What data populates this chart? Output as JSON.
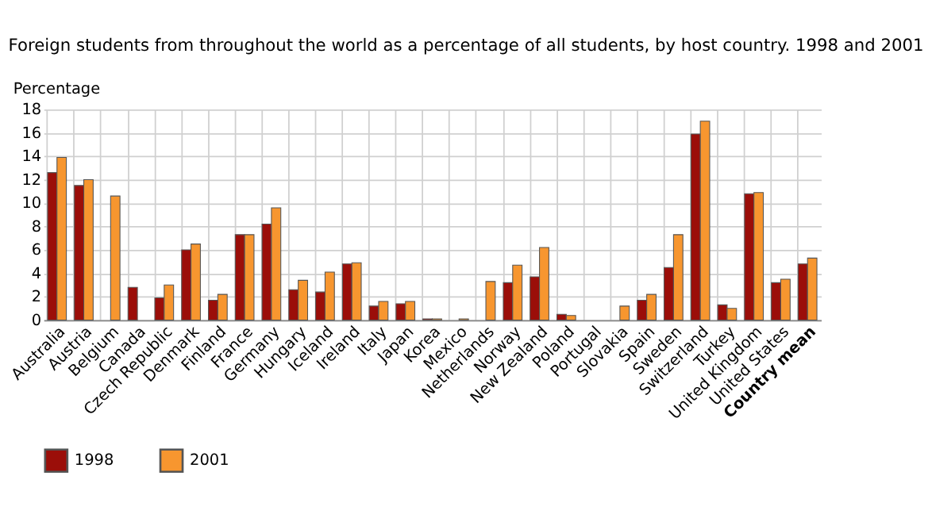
{
  "chart_data": {
    "type": "bar",
    "title": "Foreign students from throughout the world as a percentage of all students, by host country. 1998 and 2001",
    "ylabel": "Percentage",
    "categories": [
      "Australia",
      "Austria",
      "Belgium",
      "Canada",
      "Czech Republic",
      "Denmark",
      "Finland",
      "France",
      "Germany",
      "Hungary",
      "Iceland",
      "Ireland",
      "Italy",
      "Japan",
      "Korea",
      "Mexico",
      "Netherlands",
      "Norway",
      "New Zealand",
      "Poland",
      "Portugal",
      "Slovakia",
      "Spain",
      "Sweden",
      "Switzerland",
      "Turkey",
      "United Kingdom",
      "United States",
      "Country mean"
    ],
    "series": [
      {
        "name": "1998",
        "color": "#9b0e09",
        "values": [
          12.6,
          11.5,
          null,
          2.8,
          1.9,
          6.0,
          1.7,
          7.3,
          8.2,
          2.6,
          2.4,
          4.8,
          1.2,
          1.4,
          0.1,
          null,
          null,
          3.2,
          3.7,
          0.5,
          null,
          null,
          1.7,
          4.5,
          15.9,
          1.3,
          10.8,
          3.2,
          4.8
        ]
      },
      {
        "name": "2001",
        "color": "#f7962f",
        "values": [
          13.9,
          12.0,
          10.6,
          null,
          3.0,
          6.5,
          2.2,
          7.3,
          9.6,
          3.4,
          4.1,
          4.9,
          1.6,
          1.6,
          0.1,
          0.1,
          3.3,
          4.7,
          6.2,
          0.4,
          null,
          1.2,
          2.2,
          7.3,
          17.0,
          1.0,
          10.9,
          3.5,
          5.3
        ]
      }
    ],
    "ylim": [
      0,
      18
    ],
    "yticks": [
      0,
      2,
      4,
      6,
      8,
      10,
      12,
      14,
      16,
      18
    ],
    "grid": true,
    "legend": "bottom"
  }
}
